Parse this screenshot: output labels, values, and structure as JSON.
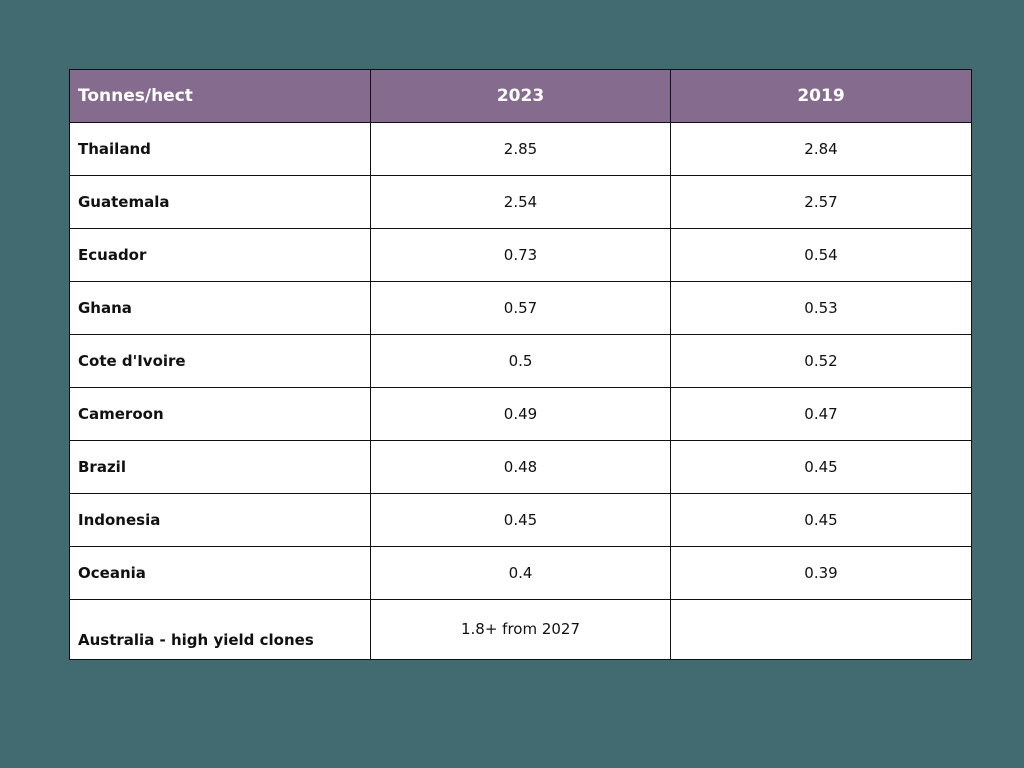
{
  "colors": {
    "background": "#416b70",
    "header_fill": "#856b8e",
    "header_text": "#ffffff",
    "cell_fill": "#ffffff",
    "border": "#111111"
  },
  "table": {
    "headers": [
      "Tonnes/hect",
      "2023",
      "2019"
    ],
    "rows": [
      [
        "Thailand",
        "2.85",
        "2.84"
      ],
      [
        "Guatemala",
        "2.54",
        "2.57"
      ],
      [
        "Ecuador",
        "0.73",
        "0.54"
      ],
      [
        "Ghana",
        "0.57",
        "0.53"
      ],
      [
        "Cote d'Ivoire",
        "0.5",
        "0.52"
      ],
      [
        "Cameroon",
        "0.49",
        "0.47"
      ],
      [
        "Brazil",
        "0.48",
        "0.45"
      ],
      [
        "Indonesia",
        "0.45",
        "0.45"
      ],
      [
        "Oceania",
        "0.4",
        "0.39"
      ],
      [
        "Australia - high yield clones",
        "1.8+ from 2027",
        ""
      ]
    ]
  },
  "chart_data": {
    "type": "table",
    "columns": [
      "Tonnes/hect",
      "2023",
      "2019"
    ],
    "rows": [
      [
        "Thailand",
        "2.85",
        "2.84"
      ],
      [
        "Guatemala",
        "2.54",
        "2.57"
      ],
      [
        "Ecuador",
        "0.73",
        "0.54"
      ],
      [
        "Ghana",
        "0.57",
        "0.53"
      ],
      [
        "Cote d'Ivoire",
        "0.5",
        "0.52"
      ],
      [
        "Cameroon",
        "0.49",
        "0.47"
      ],
      [
        "Brazil",
        "0.48",
        "0.45"
      ],
      [
        "Indonesia",
        "0.45",
        "0.45"
      ],
      [
        "Oceania",
        "0.4",
        "0.39"
      ],
      [
        "Australia - high yield clones",
        "1.8+ from 2027",
        ""
      ]
    ]
  }
}
